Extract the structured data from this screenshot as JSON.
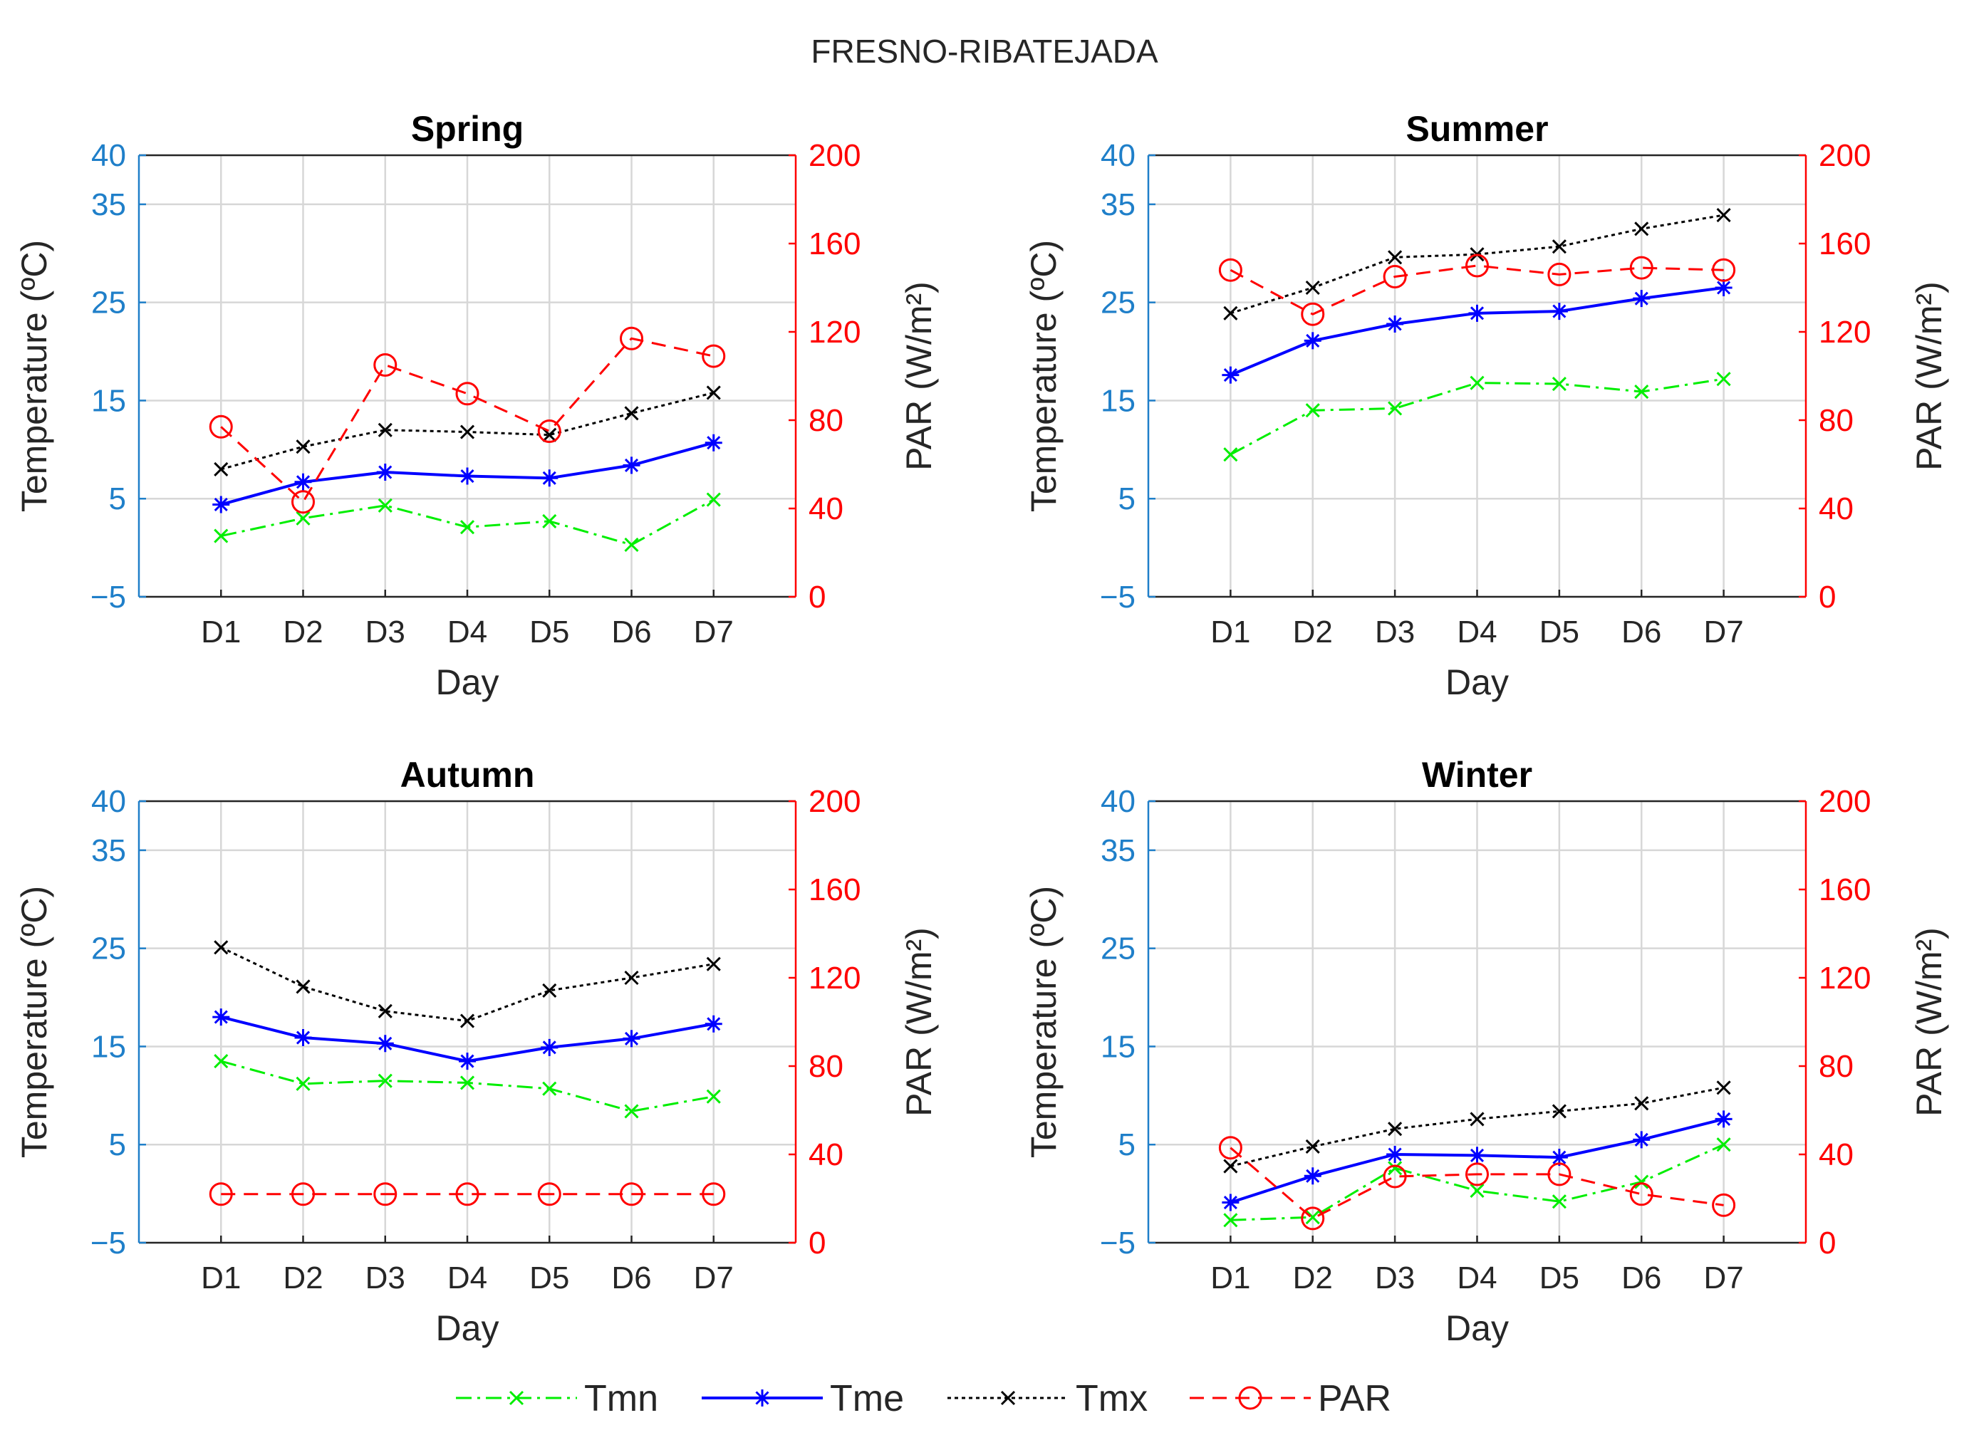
{
  "figure": {
    "title": "FRESNO-RIBATEJADA"
  },
  "colors": {
    "Tmn": "#00ee00",
    "Tme": "#0000ff",
    "Tmx": "#000000",
    "PAR": "#ff0000",
    "left_axis": "#1f7fc9",
    "right_axis": "#ff0000"
  },
  "legend": {
    "items": [
      {
        "name": "Tmn",
        "label": "Tmn"
      },
      {
        "name": "Tme",
        "label": "Tme"
      },
      {
        "name": "Tmx",
        "label": "Tmx"
      },
      {
        "name": "PAR",
        "label": "PAR"
      }
    ]
  },
  "chart_data": [
    {
      "type": "line",
      "title": "Spring",
      "xlabel": "Day",
      "ylabel_left": "Temperature (ºC)",
      "ylabel_right": "PAR (W/m²)",
      "categories": [
        "D1",
        "D2",
        "D3",
        "D4",
        "D5",
        "D6",
        "D7"
      ],
      "ylim_left": [
        -5,
        40
      ],
      "yticks_left": [
        -5,
        5,
        15,
        25,
        35,
        40
      ],
      "ytick_labels_left": [
        "−5",
        "5",
        "15",
        "25",
        "35",
        "40"
      ],
      "ylim_right": [
        0,
        200
      ],
      "yticks_right": [
        0,
        40,
        80,
        120,
        160,
        200
      ],
      "ytick_labels_right": [
        "0",
        "40",
        "80",
        "120",
        "160",
        "200"
      ],
      "grid": true,
      "series": [
        {
          "name": "Tmn",
          "axis": "left",
          "values": [
            1.2,
            3.0,
            4.3,
            2.1,
            2.7,
            0.3,
            4.9
          ]
        },
        {
          "name": "Tme",
          "axis": "left",
          "values": [
            4.4,
            6.7,
            7.7,
            7.3,
            7.1,
            8.4,
            10.7
          ]
        },
        {
          "name": "Tmx",
          "axis": "left",
          "values": [
            8.0,
            10.3,
            12.0,
            11.8,
            11.5,
            13.7,
            15.8
          ]
        },
        {
          "name": "PAR",
          "axis": "right",
          "values": [
            77,
            43,
            105,
            92,
            75,
            117,
            109
          ]
        }
      ]
    },
    {
      "type": "line",
      "title": "Summer",
      "xlabel": "Day",
      "ylabel_left": "Temperature (ºC)",
      "ylabel_right": "PAR (W/m²)",
      "categories": [
        "D1",
        "D2",
        "D3",
        "D4",
        "D5",
        "D6",
        "D7"
      ],
      "ylim_left": [
        -5,
        40
      ],
      "yticks_left": [
        -5,
        5,
        15,
        25,
        35,
        40
      ],
      "ytick_labels_left": [
        "−5",
        "5",
        "15",
        "25",
        "35",
        "40"
      ],
      "ylim_right": [
        0,
        200
      ],
      "yticks_right": [
        0,
        40,
        80,
        120,
        160,
        200
      ],
      "ytick_labels_right": [
        "0",
        "40",
        "80",
        "120",
        "160",
        "200"
      ],
      "grid": true,
      "series": [
        {
          "name": "Tmn",
          "axis": "left",
          "values": [
            9.5,
            14.0,
            14.2,
            16.8,
            16.7,
            15.9,
            17.2
          ]
        },
        {
          "name": "Tme",
          "axis": "left",
          "values": [
            17.6,
            21.1,
            22.8,
            23.9,
            24.1,
            25.4,
            26.5
          ]
        },
        {
          "name": "Tmx",
          "axis": "left",
          "values": [
            23.9,
            26.5,
            29.6,
            29.9,
            30.7,
            32.5,
            33.9
          ]
        },
        {
          "name": "PAR",
          "axis": "right",
          "values": [
            148,
            128,
            145,
            150,
            146,
            149,
            148
          ]
        }
      ]
    },
    {
      "type": "line",
      "title": "Autumn",
      "xlabel": "Day",
      "ylabel_left": "Temperature (ºC)",
      "ylabel_right": "PAR (W/m²)",
      "categories": [
        "D1",
        "D2",
        "D3",
        "D4",
        "D5",
        "D6",
        "D7"
      ],
      "ylim_left": [
        -5,
        40
      ],
      "yticks_left": [
        -5,
        5,
        15,
        25,
        35,
        40
      ],
      "ytick_labels_left": [
        "−5",
        "5",
        "15",
        "25",
        "35",
        "40"
      ],
      "ylim_right": [
        0,
        200
      ],
      "yticks_right": [
        0,
        40,
        80,
        120,
        160,
        200
      ],
      "ytick_labels_right": [
        "0",
        "40",
        "80",
        "120",
        "160",
        "200"
      ],
      "grid": true,
      "series": [
        {
          "name": "Tmn",
          "axis": "left",
          "values": [
            13.5,
            11.2,
            11.5,
            11.3,
            10.7,
            8.4,
            9.9
          ]
        },
        {
          "name": "Tme",
          "axis": "left",
          "values": [
            18.0,
            15.9,
            15.3,
            13.5,
            14.9,
            15.8,
            17.3
          ]
        },
        {
          "name": "Tmx",
          "axis": "left",
          "values": [
            25.1,
            21.1,
            18.6,
            17.6,
            20.7,
            22.0,
            23.4
          ]
        },
        {
          "name": "PAR",
          "axis": "right",
          "values": [
            22,
            22,
            22,
            22,
            22,
            22,
            22
          ]
        }
      ]
    },
    {
      "type": "line",
      "title": "Winter",
      "xlabel": "Day",
      "ylabel_left": "Temperature (ºC)",
      "ylabel_right": "PAR (W/m²)",
      "categories": [
        "D1",
        "D2",
        "D3",
        "D4",
        "D5",
        "D6",
        "D7"
      ],
      "ylim_left": [
        -5,
        40
      ],
      "yticks_left": [
        -5,
        5,
        15,
        25,
        35,
        40
      ],
      "ytick_labels_left": [
        "−5",
        "5",
        "15",
        "25",
        "35",
        "40"
      ],
      "ylim_right": [
        0,
        200
      ],
      "yticks_right": [
        0,
        40,
        80,
        120,
        160,
        200
      ],
      "ytick_labels_right": [
        "0",
        "40",
        "80",
        "120",
        "160",
        "200"
      ],
      "grid": true,
      "series": [
        {
          "name": "Tmn",
          "axis": "left",
          "values": [
            -2.7,
            -2.4,
            2.6,
            0.3,
            -0.8,
            1.2,
            5.0
          ]
        },
        {
          "name": "Tme",
          "axis": "left",
          "values": [
            -0.9,
            1.8,
            4.0,
            3.9,
            3.7,
            5.5,
            7.6
          ]
        },
        {
          "name": "Tmx",
          "axis": "left",
          "values": [
            2.8,
            4.8,
            6.6,
            7.6,
            8.4,
            9.2,
            10.8
          ]
        },
        {
          "name": "PAR",
          "axis": "right",
          "values": [
            43,
            11,
            30,
            31,
            31,
            22,
            17
          ]
        }
      ]
    }
  ]
}
